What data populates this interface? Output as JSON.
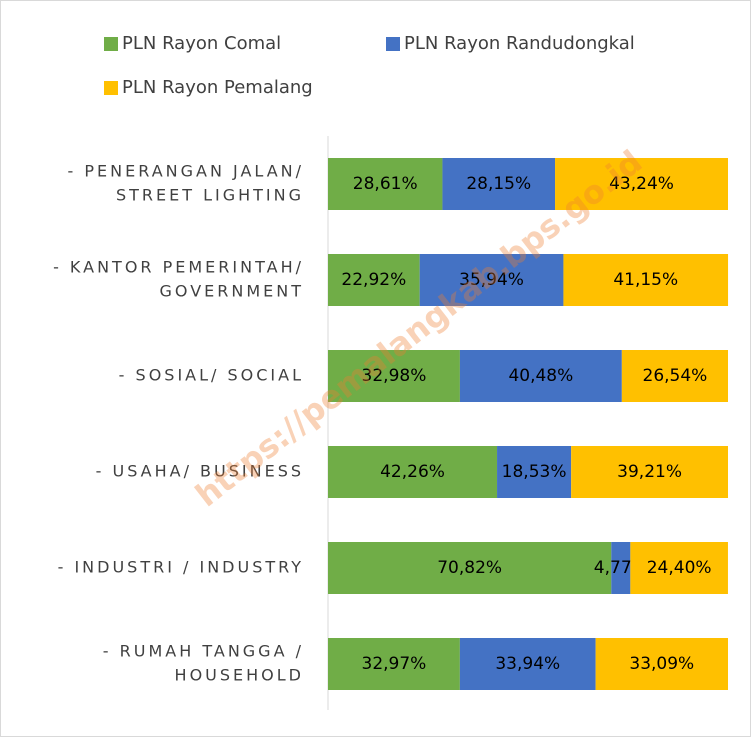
{
  "chart_data": {
    "type": "stacked-bar-horizontal",
    "watermark": "https://pemalangkab.bps.go.id",
    "categories": [
      [
        "- PENERANGAN JALAN/",
        "STREET LIGHTING"
      ],
      [
        "- KANTOR PEMERINTAH/",
        "GOVERNMENT"
      ],
      [
        "- SOSIAL/ SOCIAL"
      ],
      [
        "- USAHA/ BUSINESS"
      ],
      [
        "- INDUSTRI / INDUSTRY"
      ],
      [
        "- RUMAH TANGGA /",
        "HOUSEHOLD"
      ]
    ],
    "xlim": [
      0,
      100
    ],
    "series": [
      {
        "name": "PLN Rayon Comal",
        "color": "#70ad47",
        "values": [
          28.61,
          22.92,
          32.98,
          42.26,
          70.82,
          32.97
        ],
        "value_labels": [
          "28,61%",
          "22,92%",
          "32,98%",
          "42,26%",
          "70,82%",
          "32,97%"
        ]
      },
      {
        "name": "PLN Rayon Randudongkal",
        "color": "#4472c4",
        "values": [
          28.15,
          35.94,
          40.48,
          18.53,
          4.77,
          33.94
        ],
        "value_labels": [
          "28,15%",
          "35,94%",
          "40,48%",
          "18,53%",
          "4,77%",
          "33,94%"
        ]
      },
      {
        "name": "PLN Rayon Pemalang",
        "color": "#ffc000",
        "values": [
          43.24,
          41.15,
          26.54,
          39.21,
          24.4,
          33.09
        ],
        "value_labels": [
          "43,24%",
          "41,15%",
          "26,54%",
          "39,21%",
          "24,40%",
          "33,09%"
        ]
      }
    ]
  }
}
